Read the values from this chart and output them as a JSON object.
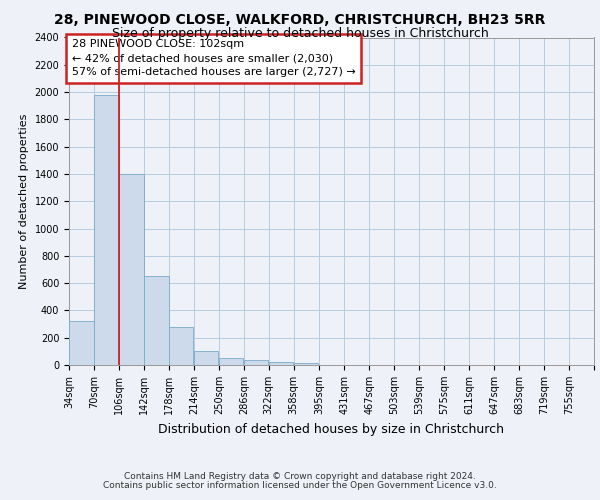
{
  "title_line1": "28, PINEWOOD CLOSE, WALKFORD, CHRISTCHURCH, BH23 5RR",
  "title_line2": "Size of property relative to detached houses in Christchurch",
  "xlabel": "Distribution of detached houses by size in Christchurch",
  "ylabel": "Number of detached properties",
  "footer_line1": "Contains HM Land Registry data © Crown copyright and database right 2024.",
  "footer_line2": "Contains public sector information licensed under the Open Government Licence v3.0.",
  "bar_color": "#ccdaeb",
  "bar_edge_color": "#7aaac8",
  "grid_color": "#b8cce0",
  "background_color": "#eef2f8",
  "annotation_text": "28 PINEWOOD CLOSE: 102sqm\n← 42% of detached houses are smaller (2,030)\n57% of semi-detached houses are larger (2,727) →",
  "annotation_box_color": "#ffffff",
  "annotation_border_color": "#cc2222",
  "red_line_color": "#cc2222",
  "categories": [
    "34sqm",
    "70sqm",
    "106sqm",
    "142sqm",
    "178sqm",
    "214sqm",
    "250sqm",
    "286sqm",
    "322sqm",
    "358sqm",
    "395sqm",
    "431sqm",
    "467sqm",
    "503sqm",
    "539sqm",
    "575sqm",
    "611sqm",
    "647sqm",
    "683sqm",
    "719sqm",
    "755sqm"
  ],
  "bin_left_edges": [
    34,
    70,
    106,
    142,
    178,
    214,
    250,
    286,
    322,
    358,
    395,
    431,
    467,
    503,
    539,
    575,
    611,
    647,
    683,
    719,
    755
  ],
  "bin_width": 36,
  "bar_heights": [
    325,
    1975,
    1400,
    650,
    275,
    100,
    50,
    38,
    25,
    15,
    0,
    0,
    0,
    0,
    0,
    0,
    0,
    0,
    0,
    0,
    0
  ],
  "red_line_x": 106,
  "ylim": [
    0,
    2400
  ],
  "yticks": [
    0,
    200,
    400,
    600,
    800,
    1000,
    1200,
    1400,
    1600,
    1800,
    2000,
    2200,
    2400
  ],
  "title1_fontsize": 10,
  "title2_fontsize": 9,
  "ylabel_fontsize": 8,
  "xlabel_fontsize": 9,
  "tick_fontsize": 7,
  "annot_fontsize": 8,
  "footer_fontsize": 6.5
}
